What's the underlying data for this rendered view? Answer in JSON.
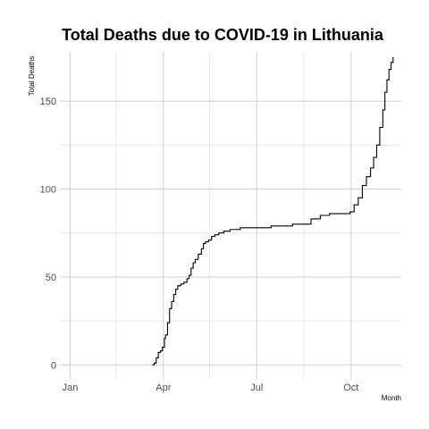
{
  "chart_data": {
    "type": "line",
    "title": "Total Deaths due to COVID-19 in Lithuania",
    "xlabel": "Month",
    "ylabel": "Total Deaths",
    "x_type": "date",
    "xlim": [
      "2019-12-22",
      "2020-11-19"
    ],
    "ylim": [
      -8,
      178
    ],
    "x_ticks": [
      {
        "date": "2020-01-01",
        "label": "Jan"
      },
      {
        "date": "2020-04-01",
        "label": "Apr"
      },
      {
        "date": "2020-07-01",
        "label": "Jul"
      },
      {
        "date": "2020-10-01",
        "label": "Oct"
      }
    ],
    "x_minor_ticks": [
      "2020-02-15",
      "2020-05-16",
      "2020-08-16"
    ],
    "y_ticks": [
      0,
      50,
      100,
      150
    ],
    "y_minor_ticks": [
      25,
      75,
      125
    ],
    "grid": true,
    "line_color": "#000000",
    "series": [
      {
        "x": [
          "2020-03-21",
          "2020-03-23",
          "2020-03-25",
          "2020-03-27",
          "2020-03-29",
          "2020-03-31",
          "2020-04-02",
          "2020-04-03",
          "2020-04-05",
          "2020-04-07",
          "2020-04-09",
          "2020-04-11",
          "2020-04-13",
          "2020-04-15",
          "2020-04-18",
          "2020-04-21",
          "2020-04-24",
          "2020-04-26",
          "2020-04-28",
          "2020-04-30",
          "2020-05-02",
          "2020-05-05",
          "2020-05-08",
          "2020-05-10",
          "2020-05-12",
          "2020-05-15",
          "2020-05-18",
          "2020-05-21",
          "2020-05-25",
          "2020-05-30",
          "2020-06-05",
          "2020-06-15",
          "2020-06-25",
          "2020-07-05",
          "2020-07-15",
          "2020-07-25",
          "2020-08-05",
          "2020-08-15",
          "2020-08-20",
          "2020-08-23",
          "2020-09-01",
          "2020-09-10",
          "2020-09-20",
          "2020-09-28",
          "2020-09-30",
          "2020-10-04",
          "2020-10-08",
          "2020-10-12",
          "2020-10-16",
          "2020-10-20",
          "2020-10-23",
          "2020-10-26",
          "2020-10-29",
          "2020-11-01",
          "2020-11-03",
          "2020-11-05",
          "2020-11-07",
          "2020-11-09",
          "2020-11-11"
        ],
        "y": [
          0,
          1,
          4,
          7,
          8,
          10,
          15,
          17,
          24,
          32,
          36,
          40,
          43,
          45,
          46,
          47,
          49,
          51,
          55,
          58,
          60,
          63,
          66,
          69,
          70,
          71,
          73,
          74,
          75,
          76,
          77,
          78,
          78,
          78,
          79,
          79,
          80,
          80,
          80,
          83,
          85,
          86,
          86,
          86,
          87,
          91,
          95,
          102,
          107,
          112,
          118,
          125,
          135,
          145,
          155,
          162,
          168,
          172,
          175
        ]
      }
    ]
  }
}
